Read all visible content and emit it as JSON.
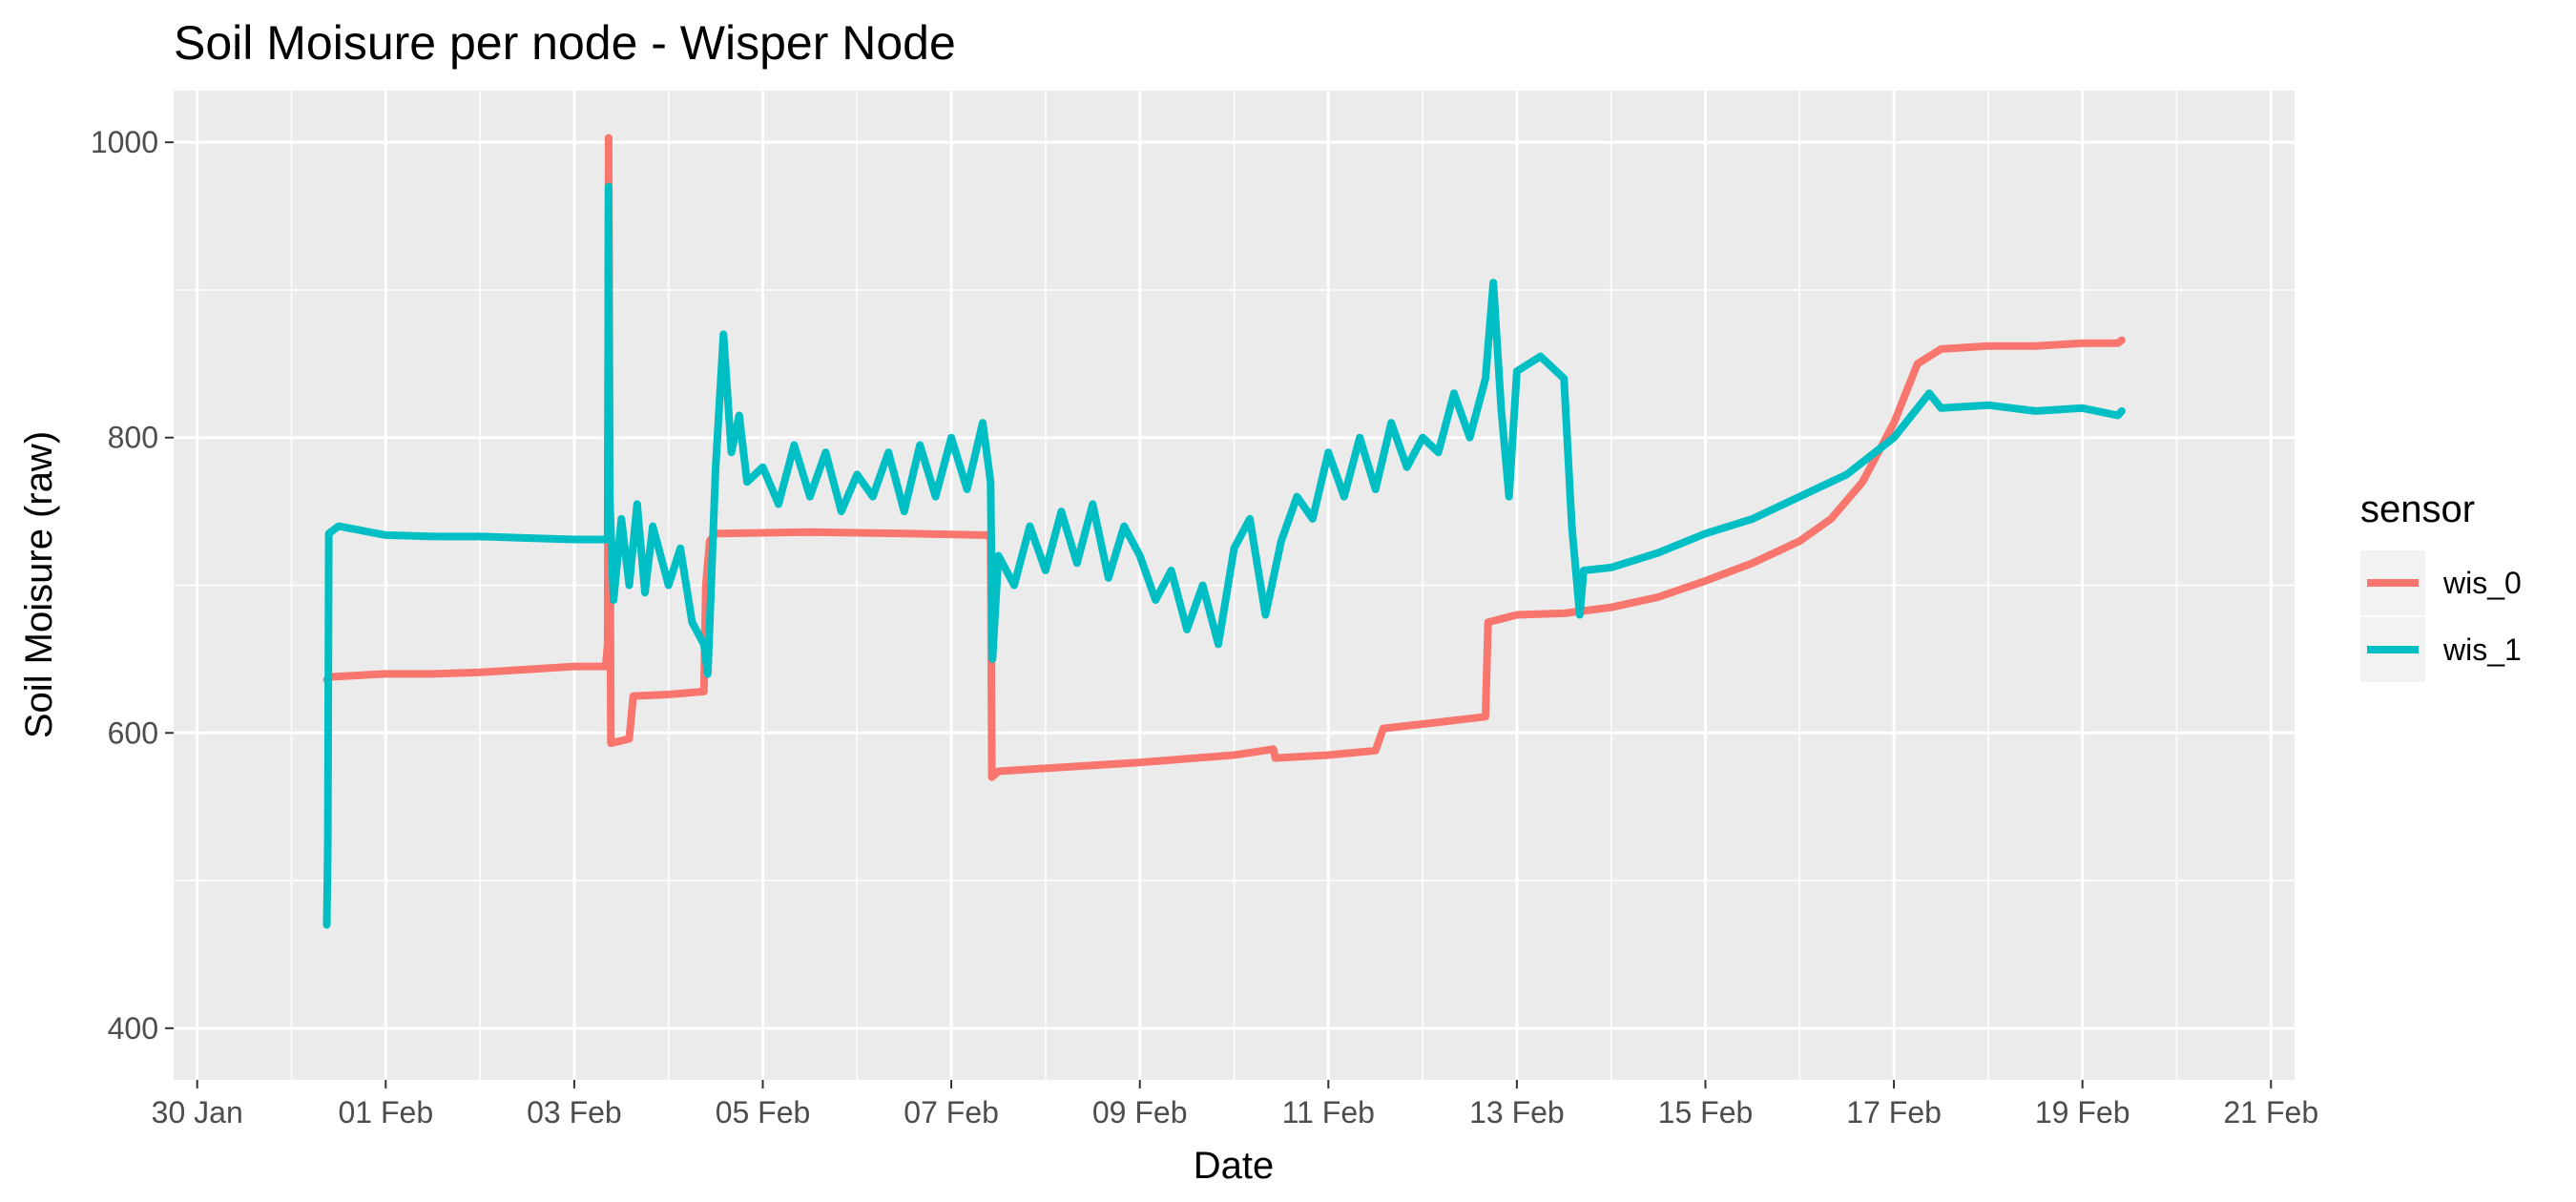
{
  "chart_data": {
    "type": "line",
    "title": "Soil Moisure per node - Wisper Node",
    "xlabel": "Date",
    "ylabel": "Soil Moisure (raw)",
    "ylim": [
      365,
      1035
    ],
    "yticks": [
      400,
      600,
      800,
      1000
    ],
    "xlim": [
      "2024-01-29T18:00",
      "2024-02-21T06:00"
    ],
    "xticks": [
      {
        "date": "2024-01-30",
        "label": "30 Jan"
      },
      {
        "date": "2024-02-01",
        "label": "01 Feb"
      },
      {
        "date": "2024-02-03",
        "label": "03 Feb"
      },
      {
        "date": "2024-02-05",
        "label": "05 Feb"
      },
      {
        "date": "2024-02-07",
        "label": "07 Feb"
      },
      {
        "date": "2024-02-09",
        "label": "09 Feb"
      },
      {
        "date": "2024-02-11",
        "label": "11 Feb"
      },
      {
        "date": "2024-02-13",
        "label": "13 Feb"
      },
      {
        "date": "2024-02-15",
        "label": "15 Feb"
      },
      {
        "date": "2024-02-17",
        "label": "17 Feb"
      },
      {
        "date": "2024-02-19",
        "label": "19 Feb"
      },
      {
        "date": "2024-02-21",
        "label": "21 Feb"
      }
    ],
    "grid": true,
    "legend": {
      "title": "sensor",
      "position": "right"
    },
    "series": [
      {
        "name": "wis_0",
        "color": "#F8766D",
        "points": [
          [
            "2024-01-31T09:00",
            636
          ],
          [
            "2024-01-31T10:00",
            638
          ],
          [
            "2024-02-01T00:00",
            640
          ],
          [
            "2024-02-01T12:00",
            640
          ],
          [
            "2024-02-02T00:00",
            641
          ],
          [
            "2024-02-02T12:00",
            643
          ],
          [
            "2024-02-03T00:00",
            645
          ],
          [
            "2024-02-03T08:00",
            645
          ],
          [
            "2024-02-03T08:30",
            660
          ],
          [
            "2024-02-03T08:45",
            1003
          ],
          [
            "2024-02-03T09:00",
            800
          ],
          [
            "2024-02-03T09:20",
            593
          ],
          [
            "2024-02-03T14:00",
            596
          ],
          [
            "2024-02-03T15:00",
            625
          ],
          [
            "2024-02-04T00:00",
            626
          ],
          [
            "2024-02-04T09:00",
            628
          ],
          [
            "2024-02-04T09:30",
            700
          ],
          [
            "2024-02-04T10:30",
            730
          ],
          [
            "2024-02-04T12:00",
            735
          ],
          [
            "2024-02-05T12:00",
            736
          ],
          [
            "2024-02-06T12:00",
            735
          ],
          [
            "2024-02-07T09:00",
            734
          ],
          [
            "2024-02-07T10:00",
            732
          ],
          [
            "2024-02-07T10:20",
            570
          ],
          [
            "2024-02-07T12:00",
            574
          ],
          [
            "2024-02-08T00:00",
            576
          ],
          [
            "2024-02-09T00:00",
            580
          ],
          [
            "2024-02-10T00:00",
            585
          ],
          [
            "2024-02-10T10:00",
            589
          ],
          [
            "2024-02-10T10:30",
            583
          ],
          [
            "2024-02-11T00:00",
            585
          ],
          [
            "2024-02-11T12:00",
            588
          ],
          [
            "2024-02-11T14:00",
            603
          ],
          [
            "2024-02-12T00:00",
            606
          ],
          [
            "2024-02-12T16:00",
            611
          ],
          [
            "2024-02-12T16:40",
            675
          ],
          [
            "2024-02-13T00:00",
            680
          ],
          [
            "2024-02-13T12:00",
            681
          ],
          [
            "2024-02-14T00:00",
            685
          ],
          [
            "2024-02-14T12:00",
            692
          ],
          [
            "2024-02-15T00:00",
            703
          ],
          [
            "2024-02-15T12:00",
            715
          ],
          [
            "2024-02-16T00:00",
            730
          ],
          [
            "2024-02-16T08:00",
            745
          ],
          [
            "2024-02-16T16:00",
            770
          ],
          [
            "2024-02-17T00:00",
            810
          ],
          [
            "2024-02-17T06:00",
            850
          ],
          [
            "2024-02-17T12:00",
            860
          ],
          [
            "2024-02-18T00:00",
            862
          ],
          [
            "2024-02-18T12:00",
            862
          ],
          [
            "2024-02-19T00:00",
            864
          ],
          [
            "2024-02-19T09:00",
            864
          ],
          [
            "2024-02-19T10:00",
            866
          ]
        ]
      },
      {
        "name": "wis_1",
        "color": "#00BFC4",
        "points": [
          [
            "2024-01-31T09:00",
            470
          ],
          [
            "2024-01-31T09:15",
            525
          ],
          [
            "2024-01-31T09:30",
            735
          ],
          [
            "2024-01-31T12:00",
            740
          ],
          [
            "2024-02-01T00:00",
            734
          ],
          [
            "2024-02-01T12:00",
            733
          ],
          [
            "2024-02-02T00:00",
            733
          ],
          [
            "2024-02-02T12:00",
            732
          ],
          [
            "2024-02-03T00:00",
            731
          ],
          [
            "2024-02-03T08:30",
            731
          ],
          [
            "2024-02-03T08:45",
            970
          ],
          [
            "2024-02-03T09:00",
            760
          ],
          [
            "2024-02-03T10:00",
            690
          ],
          [
            "2024-02-03T12:00",
            745
          ],
          [
            "2024-02-03T14:00",
            700
          ],
          [
            "2024-02-03T16:00",
            755
          ],
          [
            "2024-02-03T18:00",
            695
          ],
          [
            "2024-02-03T20:00",
            740
          ],
          [
            "2024-02-04T00:00",
            700
          ],
          [
            "2024-02-04T03:00",
            725
          ],
          [
            "2024-02-04T06:00",
            675
          ],
          [
            "2024-02-04T09:00",
            660
          ],
          [
            "2024-02-04T10:00",
            640
          ],
          [
            "2024-02-04T12:00",
            780
          ],
          [
            "2024-02-04T14:00",
            870
          ],
          [
            "2024-02-04T16:00",
            790
          ],
          [
            "2024-02-04T18:00",
            815
          ],
          [
            "2024-02-04T20:00",
            770
          ],
          [
            "2024-02-05T00:00",
            780
          ],
          [
            "2024-02-05T04:00",
            755
          ],
          [
            "2024-02-05T08:00",
            795
          ],
          [
            "2024-02-05T12:00",
            760
          ],
          [
            "2024-02-05T16:00",
            790
          ],
          [
            "2024-02-05T20:00",
            750
          ],
          [
            "2024-02-06T00:00",
            775
          ],
          [
            "2024-02-06T04:00",
            760
          ],
          [
            "2024-02-06T08:00",
            790
          ],
          [
            "2024-02-06T12:00",
            750
          ],
          [
            "2024-02-06T16:00",
            795
          ],
          [
            "2024-02-06T20:00",
            760
          ],
          [
            "2024-02-07T00:00",
            800
          ],
          [
            "2024-02-07T04:00",
            765
          ],
          [
            "2024-02-07T08:00",
            810
          ],
          [
            "2024-02-07T10:00",
            770
          ],
          [
            "2024-02-07T10:30",
            650
          ],
          [
            "2024-02-07T12:00",
            720
          ],
          [
            "2024-02-07T16:00",
            700
          ],
          [
            "2024-02-07T20:00",
            740
          ],
          [
            "2024-02-08T00:00",
            710
          ],
          [
            "2024-02-08T04:00",
            750
          ],
          [
            "2024-02-08T08:00",
            715
          ],
          [
            "2024-02-08T12:00",
            755
          ],
          [
            "2024-02-08T16:00",
            705
          ],
          [
            "2024-02-08T20:00",
            740
          ],
          [
            "2024-02-09T00:00",
            720
          ],
          [
            "2024-02-09T04:00",
            690
          ],
          [
            "2024-02-09T08:00",
            710
          ],
          [
            "2024-02-09T12:00",
            670
          ],
          [
            "2024-02-09T16:00",
            700
          ],
          [
            "2024-02-09T20:00",
            660
          ],
          [
            "2024-02-10T00:00",
            725
          ],
          [
            "2024-02-10T04:00",
            745
          ],
          [
            "2024-02-10T08:00",
            680
          ],
          [
            "2024-02-10T12:00",
            730
          ],
          [
            "2024-02-10T16:00",
            760
          ],
          [
            "2024-02-10T20:00",
            745
          ],
          [
            "2024-02-11T00:00",
            790
          ],
          [
            "2024-02-11T04:00",
            760
          ],
          [
            "2024-02-11T08:00",
            800
          ],
          [
            "2024-02-11T12:00",
            765
          ],
          [
            "2024-02-11T16:00",
            810
          ],
          [
            "2024-02-11T20:00",
            780
          ],
          [
            "2024-02-12T00:00",
            800
          ],
          [
            "2024-02-12T04:00",
            790
          ],
          [
            "2024-02-12T08:00",
            830
          ],
          [
            "2024-02-12T12:00",
            800
          ],
          [
            "2024-02-12T16:00",
            840
          ],
          [
            "2024-02-12T18:00",
            905
          ],
          [
            "2024-02-12T20:00",
            820
          ],
          [
            "2024-02-12T22:00",
            760
          ],
          [
            "2024-02-13T00:00",
            845
          ],
          [
            "2024-02-13T06:00",
            855
          ],
          [
            "2024-02-13T12:00",
            840
          ],
          [
            "2024-02-13T13:00",
            790
          ],
          [
            "2024-02-13T14:00",
            740
          ],
          [
            "2024-02-13T16:00",
            680
          ],
          [
            "2024-02-13T17:00",
            710
          ],
          [
            "2024-02-14T00:00",
            712
          ],
          [
            "2024-02-14T12:00",
            722
          ],
          [
            "2024-02-15T00:00",
            735
          ],
          [
            "2024-02-15T12:00",
            745
          ],
          [
            "2024-02-16T00:00",
            760
          ],
          [
            "2024-02-16T12:00",
            775
          ],
          [
            "2024-02-17T00:00",
            800
          ],
          [
            "2024-02-17T06:00",
            820
          ],
          [
            "2024-02-17T09:00",
            830
          ],
          [
            "2024-02-17T12:00",
            820
          ],
          [
            "2024-02-18T00:00",
            822
          ],
          [
            "2024-02-18T12:00",
            818
          ],
          [
            "2024-02-19T00:00",
            820
          ],
          [
            "2024-02-19T09:00",
            815
          ],
          [
            "2024-02-19T10:00",
            818
          ]
        ]
      }
    ]
  }
}
